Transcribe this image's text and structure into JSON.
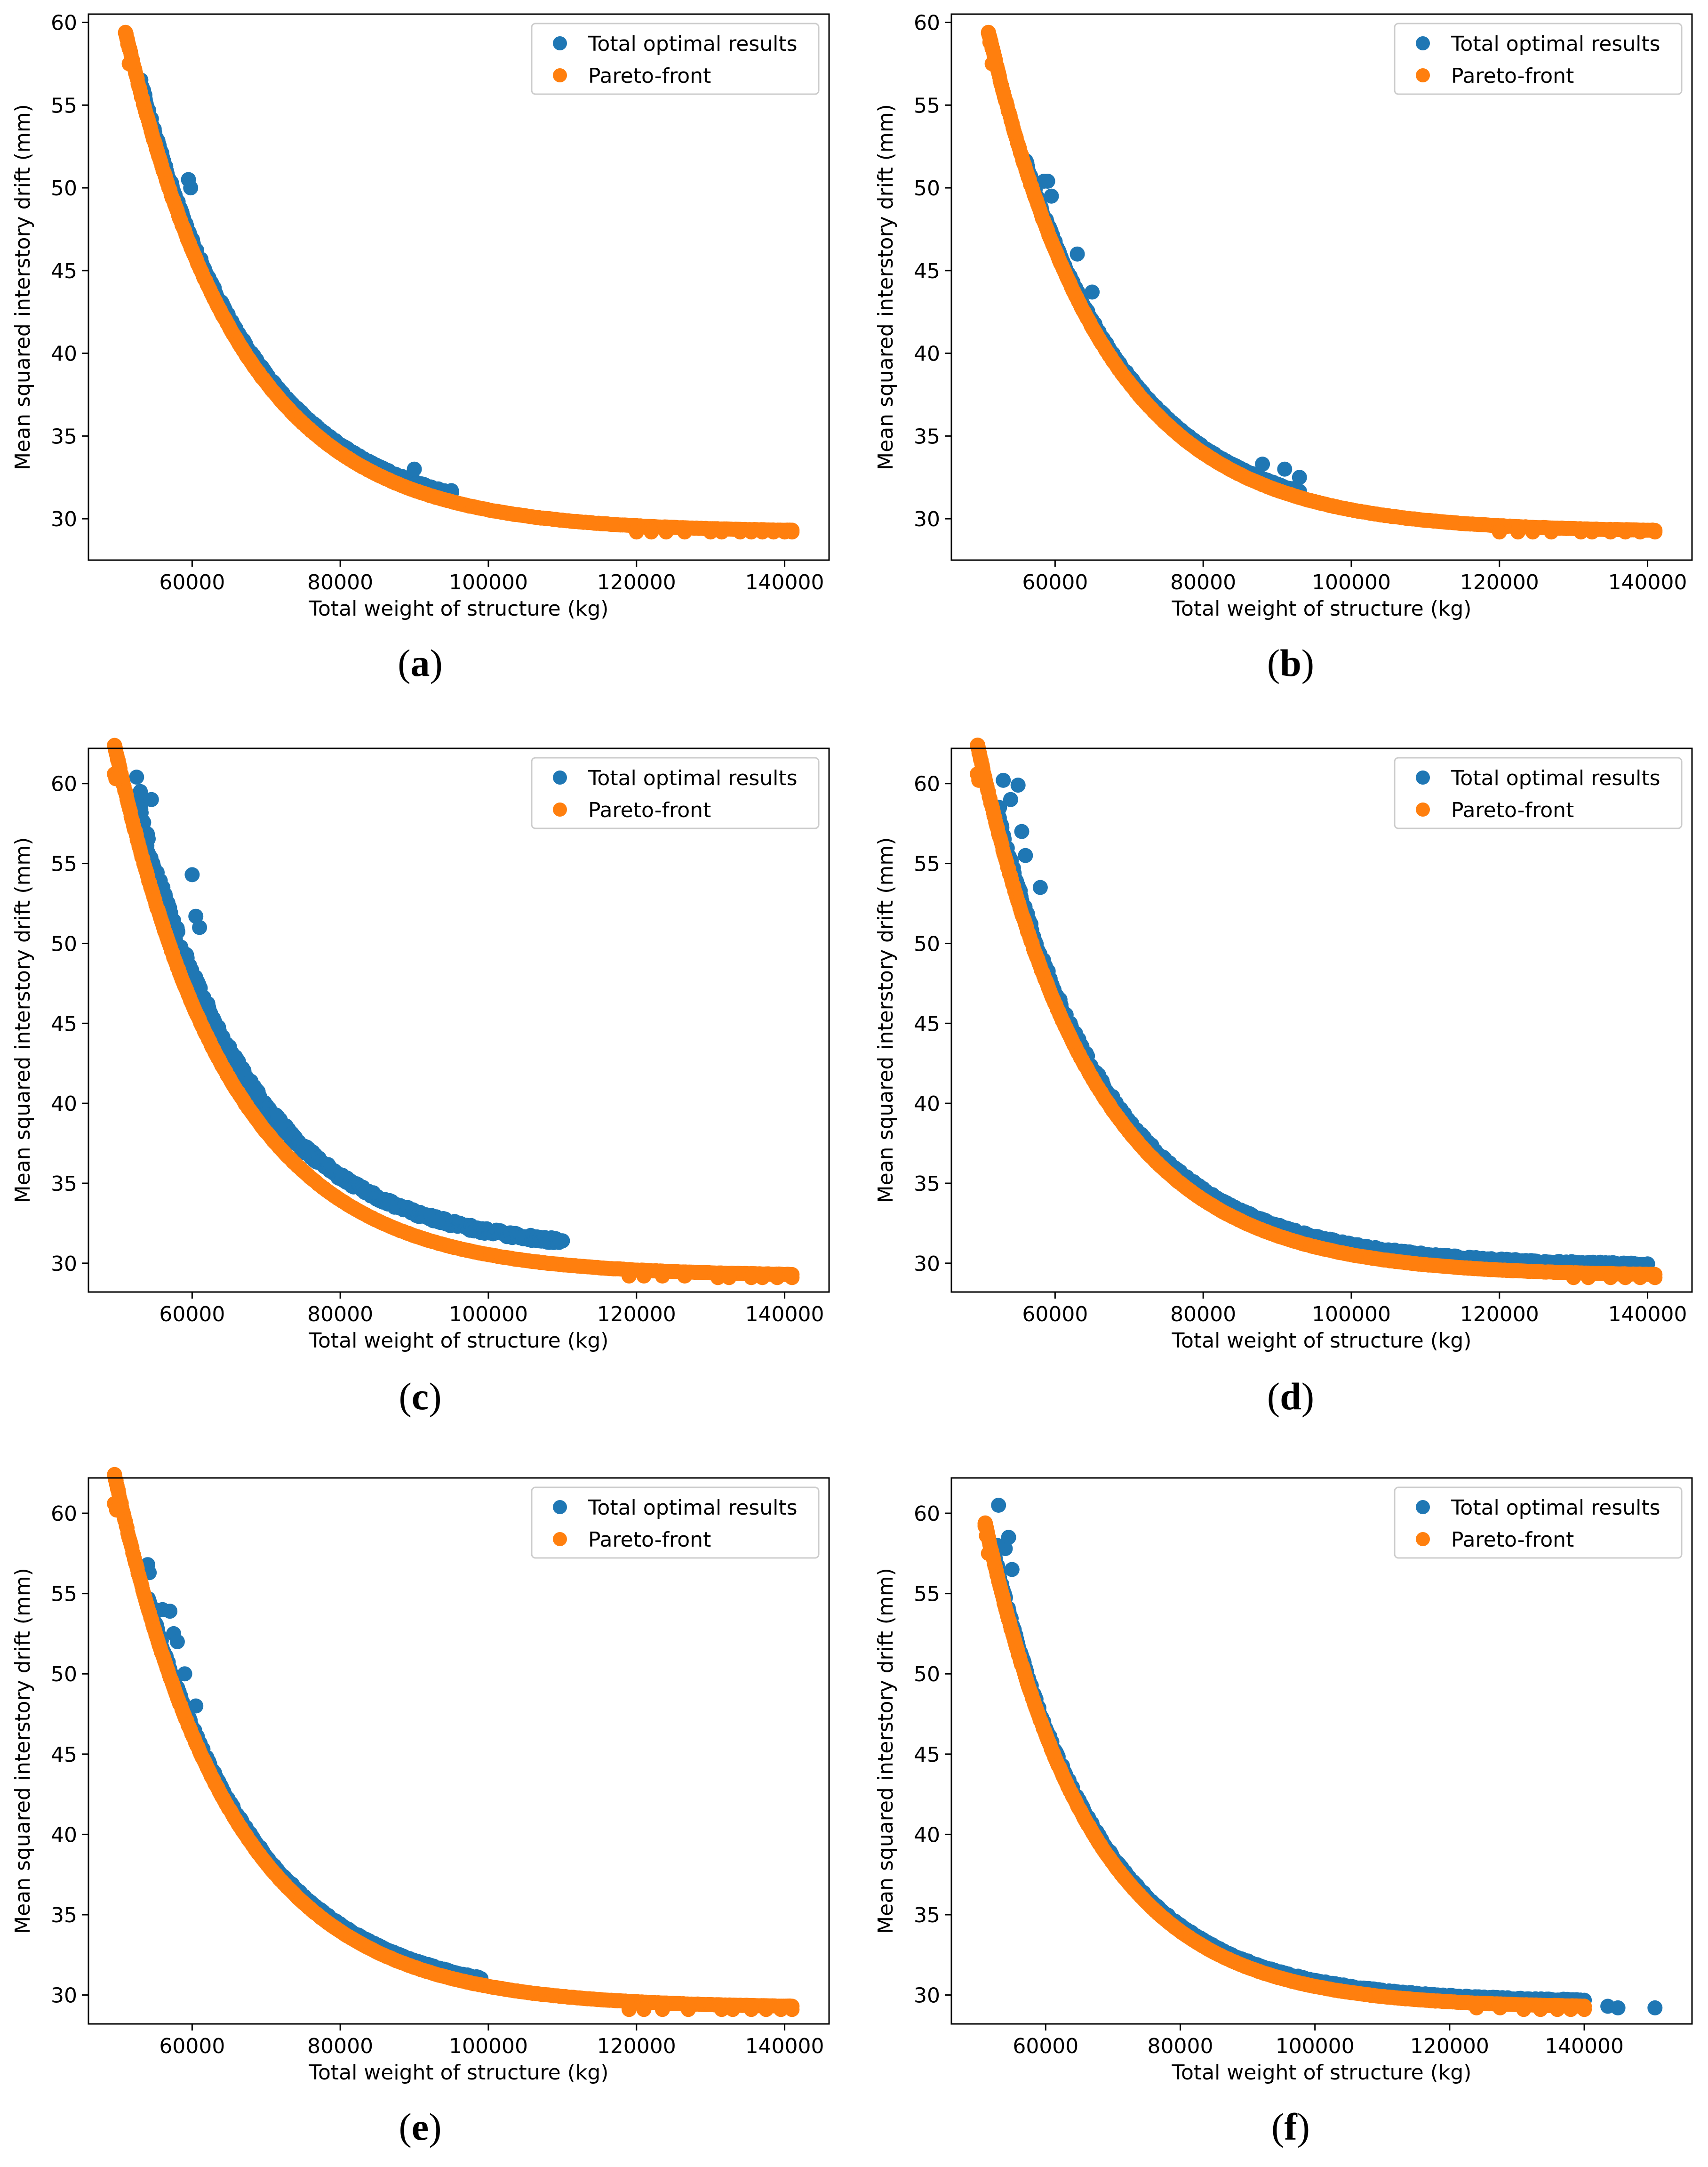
{
  "figure": {
    "common": {
      "xlabel": "Total weight of structure (kg)",
      "ylabel": "Mean squared interstory drift (mm)",
      "legend": [
        "Total optimal results",
        "Pareto-front"
      ],
      "legend_position": "top-right",
      "grid": false
    },
    "colors": {
      "total": "#1f77b4",
      "pareto": "#ff7f0e"
    }
  },
  "chart_data": [
    {
      "type": "scatter",
      "panel": "a",
      "xlim": [
        46000,
        146000
      ],
      "ylim": [
        27.5,
        60.5
      ],
      "xticks": [
        60000,
        80000,
        100000,
        120000,
        140000
      ],
      "yticks": [
        30,
        35,
        40,
        45,
        50,
        55,
        60
      ],
      "xlabel": "Total weight of structure (kg)",
      "ylabel": "Mean squared interstory drift (mm)",
      "series": [
        {
          "name": "Total optimal results",
          "front": {
            "x_start": 53000,
            "x_end": 95000,
            "offset_y": 0.5,
            "count": 320,
            "spread": 0.6
          },
          "extras": [
            {
              "x": 59500,
              "y": 50.5
            },
            {
              "x": 59800,
              "y": 50.0
            },
            {
              "x": 90000,
              "y": 33.0
            },
            {
              "x": 95000,
              "y": 31.7
            }
          ]
        },
        {
          "name": "Pareto-front",
          "front": {
            "x_start": 51000,
            "x_end": 141000,
            "offset_y": 0,
            "count": 380,
            "spread": 0.15
          },
          "extras": [
            {
              "x": 51000,
              "y": 59.4
            },
            {
              "x": 51300,
              "y": 58.7
            },
            {
              "x": 51500,
              "y": 57.5
            },
            {
              "x": 120000,
              "y": 29.2
            },
            {
              "x": 122000,
              "y": 29.2
            },
            {
              "x": 124000,
              "y": 29.2
            },
            {
              "x": 126500,
              "y": 29.2
            },
            {
              "x": 130000,
              "y": 29.2
            },
            {
              "x": 131500,
              "y": 29.2
            },
            {
              "x": 134000,
              "y": 29.2
            },
            {
              "x": 135500,
              "y": 29.2
            },
            {
              "x": 137000,
              "y": 29.2
            },
            {
              "x": 138500,
              "y": 29.2
            },
            {
              "x": 140000,
              "y": 29.2
            },
            {
              "x": 141000,
              "y": 29.2
            }
          ]
        }
      ]
    },
    {
      "type": "scatter",
      "panel": "b",
      "xlim": [
        46000,
        146000
      ],
      "ylim": [
        27.5,
        60.5
      ],
      "xticks": [
        60000,
        80000,
        100000,
        120000,
        140000
      ],
      "yticks": [
        30,
        35,
        40,
        45,
        50,
        55,
        60
      ],
      "xlabel": "Total weight of structure (kg)",
      "ylabel": "Mean squared interstory drift (mm)",
      "series": [
        {
          "name": "Total optimal results",
          "front": {
            "x_start": 56000,
            "x_end": 93000,
            "offset_y": 0.35,
            "count": 250,
            "spread": 0.5
          },
          "extras": [
            {
              "x": 58500,
              "y": 50.4
            },
            {
              "x": 59000,
              "y": 50.4
            },
            {
              "x": 59500,
              "y": 49.5
            },
            {
              "x": 63000,
              "y": 46.0
            },
            {
              "x": 65000,
              "y": 43.7
            },
            {
              "x": 88000,
              "y": 33.3
            },
            {
              "x": 91000,
              "y": 33.0
            },
            {
              "x": 93000,
              "y": 32.5
            }
          ]
        },
        {
          "name": "Pareto-front",
          "front": {
            "x_start": 51000,
            "x_end": 141000,
            "offset_y": 0,
            "count": 380,
            "spread": 0.15
          },
          "extras": [
            {
              "x": 51000,
              "y": 59.4
            },
            {
              "x": 51200,
              "y": 58.8
            },
            {
              "x": 51500,
              "y": 57.5
            },
            {
              "x": 120000,
              "y": 29.2
            },
            {
              "x": 122500,
              "y": 29.2
            },
            {
              "x": 124500,
              "y": 29.2
            },
            {
              "x": 127000,
              "y": 29.2
            },
            {
              "x": 131000,
              "y": 29.2
            },
            {
              "x": 132500,
              "y": 29.2
            },
            {
              "x": 135000,
              "y": 29.2
            },
            {
              "x": 137000,
              "y": 29.2
            },
            {
              "x": 139000,
              "y": 29.2
            },
            {
              "x": 141000,
              "y": 29.2
            }
          ]
        }
      ]
    },
    {
      "type": "scatter",
      "panel": "c",
      "xlim": [
        46000,
        146000
      ],
      "ylim": [
        28.2,
        62.2
      ],
      "xticks": [
        60000,
        80000,
        100000,
        120000,
        140000
      ],
      "yticks": [
        30,
        35,
        40,
        45,
        50,
        55,
        60
      ],
      "xlabel": "Total weight of structure (kg)",
      "ylabel": "Mean squared interstory drift (mm)",
      "series": [
        {
          "name": "Total optimal results",
          "front": {
            "x_start": 52500,
            "x_end": 110000,
            "offset_y": 1.4,
            "count": 520,
            "spread": 2.2
          },
          "extras": [
            {
              "x": 52500,
              "y": 60.4
            },
            {
              "x": 53000,
              "y": 59.5
            },
            {
              "x": 54500,
              "y": 59.0
            },
            {
              "x": 60000,
              "y": 54.3
            },
            {
              "x": 60500,
              "y": 51.7
            },
            {
              "x": 61000,
              "y": 51.0
            }
          ]
        },
        {
          "name": "Pareto-front",
          "front": {
            "x_start": 49500,
            "x_end": 141000,
            "offset_y": 0,
            "count": 420,
            "spread": 0.15
          },
          "extras": [
            {
              "x": 49500,
              "y": 60.6
            },
            {
              "x": 49700,
              "y": 60.3
            },
            {
              "x": 119000,
              "y": 29.2
            },
            {
              "x": 121000,
              "y": 29.2
            },
            {
              "x": 123500,
              "y": 29.2
            },
            {
              "x": 126500,
              "y": 29.2
            },
            {
              "x": 131000,
              "y": 29.1
            },
            {
              "x": 132500,
              "y": 29.1
            },
            {
              "x": 135500,
              "y": 29.1
            },
            {
              "x": 137000,
              "y": 29.1
            },
            {
              "x": 139000,
              "y": 29.1
            },
            {
              "x": 141000,
              "y": 29.1
            }
          ]
        }
      ]
    },
    {
      "type": "scatter",
      "panel": "d",
      "xlim": [
        46000,
        146000
      ],
      "ylim": [
        28.2,
        62.2
      ],
      "xticks": [
        60000,
        80000,
        100000,
        120000,
        140000
      ],
      "yticks": [
        30,
        35,
        40,
        45,
        50,
        55,
        60
      ],
      "xlabel": "Total weight of structure (kg)",
      "ylabel": "Mean squared interstory drift (mm)",
      "series": [
        {
          "name": "Total optimal results",
          "front": {
            "x_start": 52000,
            "x_end": 140000,
            "offset_y": 0.6,
            "count": 480,
            "spread": 1.0
          },
          "extras": [
            {
              "x": 53000,
              "y": 60.2
            },
            {
              "x": 55000,
              "y": 59.9
            },
            {
              "x": 54000,
              "y": 59.0
            },
            {
              "x": 52500,
              "y": 58.5
            },
            {
              "x": 55500,
              "y": 57.0
            },
            {
              "x": 56000,
              "y": 55.5
            },
            {
              "x": 58000,
              "y": 53.5
            }
          ]
        },
        {
          "name": "Pareto-front",
          "front": {
            "x_start": 49500,
            "x_end": 141000,
            "offset_y": 0,
            "count": 420,
            "spread": 0.15
          },
          "extras": [
            {
              "x": 49500,
              "y": 60.6
            },
            {
              "x": 49700,
              "y": 60.2
            },
            {
              "x": 130000,
              "y": 29.1
            },
            {
              "x": 132000,
              "y": 29.1
            },
            {
              "x": 135000,
              "y": 29.1
            },
            {
              "x": 137000,
              "y": 29.1
            },
            {
              "x": 139000,
              "y": 29.1
            },
            {
              "x": 141000,
              "y": 29.1
            }
          ]
        }
      ]
    },
    {
      "type": "scatter",
      "panel": "e",
      "xlim": [
        46000,
        146000
      ],
      "ylim": [
        28.2,
        62.2
      ],
      "xticks": [
        60000,
        80000,
        100000,
        120000,
        140000
      ],
      "yticks": [
        30,
        35,
        40,
        45,
        50,
        55,
        60
      ],
      "xlabel": "Total weight of structure (kg)",
      "ylabel": "Mean squared interstory drift (mm)",
      "series": [
        {
          "name": "Total optimal results",
          "front": {
            "x_start": 54000,
            "x_end": 99000,
            "offset_y": 0.4,
            "count": 300,
            "spread": 0.6
          },
          "extras": [
            {
              "x": 54000,
              "y": 56.8
            },
            {
              "x": 54200,
              "y": 56.3
            },
            {
              "x": 55000,
              "y": 54.0
            },
            {
              "x": 56000,
              "y": 54.0
            },
            {
              "x": 57000,
              "y": 53.9
            },
            {
              "x": 57500,
              "y": 52.5
            },
            {
              "x": 58000,
              "y": 52.0
            },
            {
              "x": 59000,
              "y": 50.0
            },
            {
              "x": 60500,
              "y": 48.0
            },
            {
              "x": 99000,
              "y": 31.0
            }
          ]
        },
        {
          "name": "Pareto-front",
          "front": {
            "x_start": 49500,
            "x_end": 141000,
            "offset_y": 0,
            "count": 420,
            "spread": 0.15
          },
          "extras": [
            {
              "x": 49500,
              "y": 60.6
            },
            {
              "x": 49800,
              "y": 60.2
            },
            {
              "x": 119000,
              "y": 29.1
            },
            {
              "x": 121000,
              "y": 29.1
            },
            {
              "x": 123500,
              "y": 29.1
            },
            {
              "x": 127000,
              "y": 29.1
            },
            {
              "x": 131500,
              "y": 29.1
            },
            {
              "x": 133000,
              "y": 29.1
            },
            {
              "x": 135500,
              "y": 29.1
            },
            {
              "x": 137500,
              "y": 29.1
            },
            {
              "x": 139500,
              "y": 29.1
            },
            {
              "x": 141000,
              "y": 29.1
            }
          ]
        }
      ]
    },
    {
      "type": "scatter",
      "panel": "f",
      "xlim": [
        46000,
        156000
      ],
      "ylim": [
        28.2,
        62.2
      ],
      "xticks": [
        60000,
        80000,
        100000,
        120000,
        140000
      ],
      "yticks": [
        30,
        35,
        40,
        45,
        50,
        55,
        60
      ],
      "xlabel": "Total weight of structure (kg)",
      "ylabel": "Mean squared interstory drift (mm)",
      "series": [
        {
          "name": "Total optimal results",
          "front": {
            "x_start": 52500,
            "x_end": 140000,
            "offset_y": 0.35,
            "count": 420,
            "spread": 0.6
          },
          "extras": [
            {
              "x": 53000,
              "y": 60.5
            },
            {
              "x": 54500,
              "y": 58.5
            },
            {
              "x": 54000,
              "y": 57.8
            },
            {
              "x": 52800,
              "y": 58.0
            },
            {
              "x": 55000,
              "y": 56.5
            },
            {
              "x": 143500,
              "y": 29.3
            },
            {
              "x": 145000,
              "y": 29.2
            },
            {
              "x": 150500,
              "y": 29.2
            }
          ]
        },
        {
          "name": "Pareto-front",
          "front": {
            "x_start": 51000,
            "x_end": 140000,
            "offset_y": 0,
            "count": 400,
            "spread": 0.15
          },
          "extras": [
            {
              "x": 51000,
              "y": 59.2
            },
            {
              "x": 51200,
              "y": 58.6
            },
            {
              "x": 51500,
              "y": 57.5
            },
            {
              "x": 124000,
              "y": 29.2
            },
            {
              "x": 127500,
              "y": 29.2
            },
            {
              "x": 131000,
              "y": 29.1
            },
            {
              "x": 133500,
              "y": 29.1
            },
            {
              "x": 136000,
              "y": 29.1
            },
            {
              "x": 138000,
              "y": 29.1
            },
            {
              "x": 140000,
              "y": 29.1
            }
          ]
        }
      ]
    }
  ],
  "panel_labels": [
    "a",
    "b",
    "c",
    "d",
    "e",
    "f"
  ]
}
